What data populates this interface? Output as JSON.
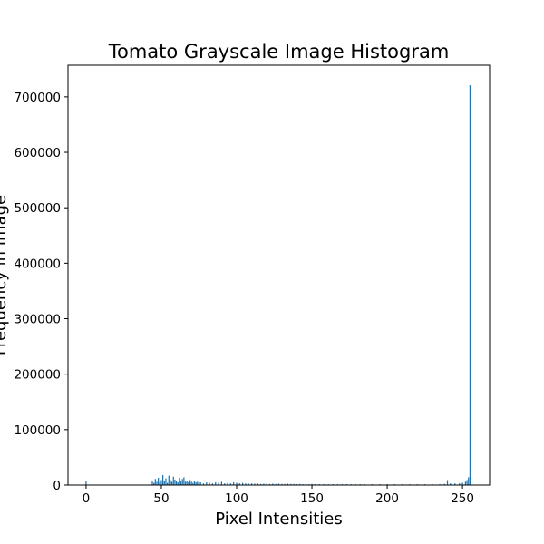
{
  "chart_data": {
    "type": "bar",
    "title": "Tomato Grayscale Image Histogram",
    "xlabel": "Pixel Intensities",
    "ylabel": "Frequency in Image",
    "xlim": [
      -12,
      268
    ],
    "ylim": [
      0,
      757000
    ],
    "xticks": [
      0,
      50,
      100,
      150,
      200,
      250
    ],
    "yticks": [
      0,
      100000,
      200000,
      300000,
      400000,
      500000,
      600000,
      700000
    ],
    "ytick_labels": [
      "0",
      "100000",
      "200000",
      "300000",
      "400000",
      "500000",
      "600000",
      "700000"
    ],
    "bar_color": "#1f77b4",
    "grid": false,
    "legend": "none",
    "series": [
      {
        "x": [
          0,
          44,
          45,
          46,
          47,
          48,
          49,
          50,
          51,
          52,
          53,
          54,
          55,
          56,
          57,
          58,
          59,
          60,
          61,
          62,
          63,
          64,
          65,
          66,
          67,
          68,
          69,
          70,
          71,
          72,
          73,
          74,
          75,
          76,
          78,
          80,
          82,
          84,
          86,
          88,
          90,
          92,
          94,
          96,
          98,
          100,
          102,
          104,
          106,
          108,
          110,
          112,
          114,
          116,
          118,
          120,
          122,
          124,
          126,
          128,
          130,
          132,
          134,
          136,
          138,
          140,
          142,
          144,
          146,
          148,
          150,
          152,
          155,
          158,
          161,
          164,
          167,
          170,
          173,
          176,
          179,
          182,
          185,
          190,
          195,
          200,
          205,
          210,
          215,
          220,
          225,
          230,
          235,
          238,
          240,
          242,
          245,
          248,
          250,
          252,
          253,
          254,
          255
        ],
        "values": [
          7000,
          8000,
          4000,
          11000,
          6000,
          13000,
          5000,
          9000,
          18000,
          7000,
          12000,
          4000,
          17000,
          9000,
          6000,
          15000,
          10000,
          8000,
          5000,
          13000,
          7000,
          11000,
          14000,
          6000,
          8000,
          5000,
          9000,
          6000,
          4000,
          7000,
          5000,
          6000,
          4000,
          5000,
          3000,
          5000,
          4000,
          3000,
          5000,
          4000,
          6000,
          3000,
          4000,
          3000,
          5000,
          4000,
          3000,
          4000,
          3000,
          2500,
          3000,
          2500,
          3000,
          2000,
          2500,
          3000,
          2000,
          2500,
          2000,
          2500,
          2000,
          2000,
          2500,
          2000,
          2000,
          1500,
          2000,
          1500,
          2000,
          1500,
          2000,
          1500,
          1500,
          1500,
          1500,
          1500,
          1500,
          1500,
          1500,
          1500,
          1500,
          1500,
          1500,
          1500,
          1500,
          1500,
          1500,
          1500,
          1500,
          1500,
          1500,
          1500,
          1500,
          2000,
          9000,
          3000,
          3000,
          3000,
          4000,
          6000,
          9000,
          14000,
          721000
        ]
      }
    ]
  }
}
